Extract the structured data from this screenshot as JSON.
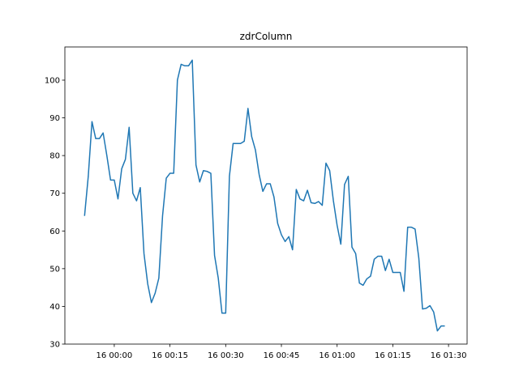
{
  "chart_data": {
    "type": "line",
    "title": "zdrColumn",
    "color": "#1f77b4",
    "x": [
      -8,
      -7,
      -6,
      -5,
      -4,
      -3,
      -2,
      -1,
      0,
      1,
      2,
      3,
      4,
      5,
      6,
      7,
      8,
      9,
      10,
      11,
      12,
      13,
      14,
      15,
      16,
      17,
      18,
      19,
      20,
      21,
      22,
      23,
      24,
      25,
      26,
      27,
      28,
      29,
      30,
      31,
      32,
      33,
      34,
      35,
      36,
      37,
      38,
      39,
      40,
      41,
      42,
      43,
      44,
      45,
      46,
      47,
      48,
      49,
      50,
      51,
      52,
      53,
      54,
      55,
      56,
      57,
      58,
      59,
      60,
      61,
      62,
      63,
      64,
      65,
      66,
      67,
      68,
      69,
      70,
      71,
      72,
      73,
      74,
      75,
      76,
      77,
      78,
      79,
      80,
      81,
      82,
      83,
      84,
      85,
      86,
      87,
      88,
      89
    ],
    "values": [
      64,
      74.5,
      89,
      84.5,
      84.5,
      86,
      80,
      73.5,
      73.5,
      68.5,
      76.5,
      79,
      87.5,
      70,
      68,
      71.5,
      54,
      46,
      41,
      43.5,
      47.5,
      64,
      74,
      75.3,
      75.3,
      100,
      104.2,
      103.8,
      103.8,
      105.3,
      77.5,
      73,
      76,
      75.8,
      75.3,
      53.5,
      47.5,
      38.2,
      38.2,
      74.5,
      83.2,
      83.2,
      83.2,
      83.8,
      92.5,
      85,
      81.5,
      75,
      70.5,
      72.5,
      72.5,
      69,
      62,
      59,
      57.2,
      58.5,
      55,
      71,
      68.5,
      68,
      70.8,
      67.5,
      67.3,
      67.8,
      66.8,
      78,
      76,
      68,
      61.5,
      56.5,
      72.3,
      74.5,
      55.7,
      54,
      46.2,
      45.6,
      47.3,
      48,
      52.5,
      53.3,
      53.3,
      49.5,
      52.5,
      49,
      49,
      49,
      44,
      61,
      61,
      60.5,
      52.8,
      39.3,
      39.5,
      40.2,
      38.5,
      33.5,
      34.8,
      34.8
    ],
    "xlim": [
      -13.3,
      95
    ],
    "xticks": [
      {
        "value": 0,
        "label": "16 00:00"
      },
      {
        "value": 15,
        "label": "16 00:15"
      },
      {
        "value": 30,
        "label": "16 00:30"
      },
      {
        "value": 45,
        "label": "16 00:45"
      },
      {
        "value": 60,
        "label": "16 01:00"
      },
      {
        "value": 75,
        "label": "16 01:15"
      },
      {
        "value": 90,
        "label": "16 01:30"
      }
    ],
    "ylim": [
      30,
      108.8
    ],
    "yticks": [
      30,
      40,
      50,
      60,
      70,
      80,
      90,
      100
    ],
    "grid": false
  }
}
